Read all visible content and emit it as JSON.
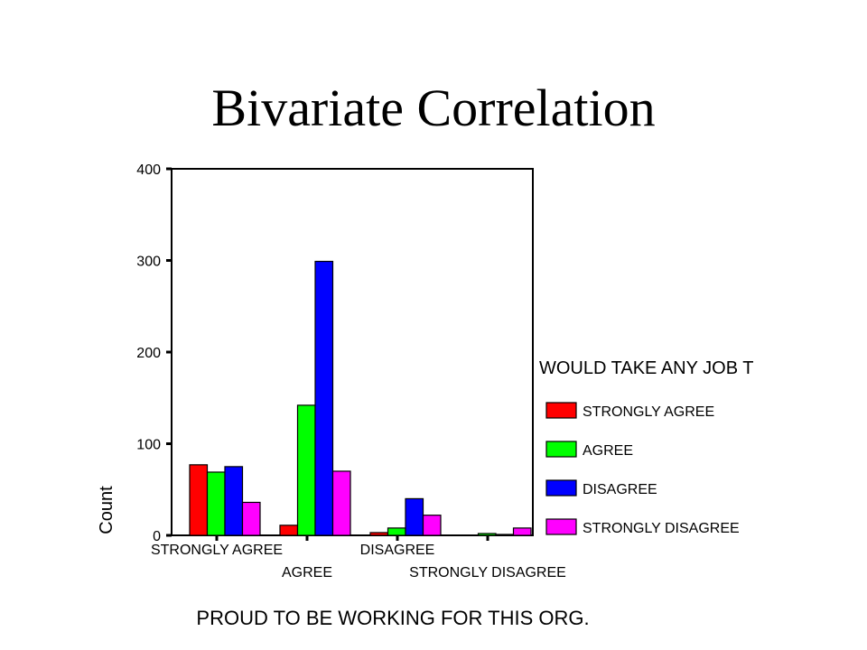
{
  "slide": {
    "title": "Bivariate Correlation"
  },
  "chart_data": {
    "type": "bar",
    "ylabel": "Count",
    "xlabel": "PROUD TO BE WORKING FOR THIS ORG.",
    "ylim": [
      0,
      400
    ],
    "yticks": [
      0,
      100,
      200,
      300,
      400
    ],
    "categories": [
      "STRONGLY AGREE",
      "AGREE",
      "DISAGREE",
      "STRONGLY DISAGREE"
    ],
    "legend_title": "WOULD TAKE ANY JOB T",
    "legend_position": "right",
    "series": [
      {
        "name": "STRONGLY AGREE",
        "color": "#ff0000",
        "values": [
          77,
          11,
          3,
          0
        ]
      },
      {
        "name": "AGREE",
        "color": "#00ff00",
        "values": [
          69,
          142,
          8,
          2
        ]
      },
      {
        "name": "DISAGREE",
        "color": "#0000ff",
        "values": [
          75,
          299,
          40,
          1
        ]
      },
      {
        "name": "STRONGLY DISAGREE",
        "color": "#ff00ff",
        "values": [
          36,
          70,
          22,
          8
        ]
      }
    ]
  }
}
